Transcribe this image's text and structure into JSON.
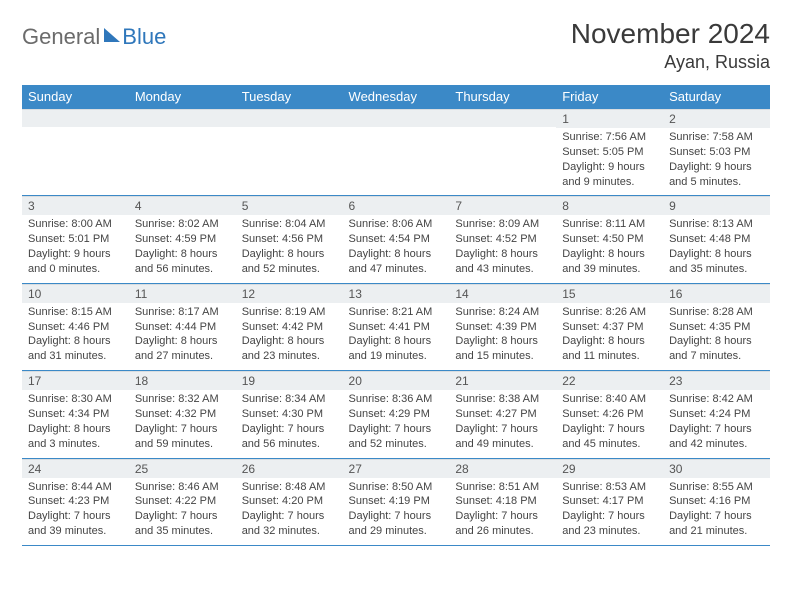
{
  "brand": {
    "word1": "General",
    "word2": "Blue"
  },
  "title": "November 2024",
  "location": "Ayan, Russia",
  "colors": {
    "accent": "#3b89c7",
    "dayrow_bg": "#eceff1"
  },
  "weekdays": [
    "Sunday",
    "Monday",
    "Tuesday",
    "Wednesday",
    "Thursday",
    "Friday",
    "Saturday"
  ],
  "weeks": [
    [
      {
        "n": "",
        "lines": [
          "",
          "",
          ""
        ]
      },
      {
        "n": "",
        "lines": [
          "",
          "",
          ""
        ]
      },
      {
        "n": "",
        "lines": [
          "",
          "",
          ""
        ]
      },
      {
        "n": "",
        "lines": [
          "",
          "",
          ""
        ]
      },
      {
        "n": "",
        "lines": [
          "",
          "",
          ""
        ]
      },
      {
        "n": "1",
        "lines": [
          "Sunrise: 7:56 AM",
          "Sunset: 5:05 PM",
          "Daylight: 9 hours and 9 minutes."
        ]
      },
      {
        "n": "2",
        "lines": [
          "Sunrise: 7:58 AM",
          "Sunset: 5:03 PM",
          "Daylight: 9 hours and 5 minutes."
        ]
      }
    ],
    [
      {
        "n": "3",
        "lines": [
          "Sunrise: 8:00 AM",
          "Sunset: 5:01 PM",
          "Daylight: 9 hours and 0 minutes."
        ]
      },
      {
        "n": "4",
        "lines": [
          "Sunrise: 8:02 AM",
          "Sunset: 4:59 PM",
          "Daylight: 8 hours and 56 minutes."
        ]
      },
      {
        "n": "5",
        "lines": [
          "Sunrise: 8:04 AM",
          "Sunset: 4:56 PM",
          "Daylight: 8 hours and 52 minutes."
        ]
      },
      {
        "n": "6",
        "lines": [
          "Sunrise: 8:06 AM",
          "Sunset: 4:54 PM",
          "Daylight: 8 hours and 47 minutes."
        ]
      },
      {
        "n": "7",
        "lines": [
          "Sunrise: 8:09 AM",
          "Sunset: 4:52 PM",
          "Daylight: 8 hours and 43 minutes."
        ]
      },
      {
        "n": "8",
        "lines": [
          "Sunrise: 8:11 AM",
          "Sunset: 4:50 PM",
          "Daylight: 8 hours and 39 minutes."
        ]
      },
      {
        "n": "9",
        "lines": [
          "Sunrise: 8:13 AM",
          "Sunset: 4:48 PM",
          "Daylight: 8 hours and 35 minutes."
        ]
      }
    ],
    [
      {
        "n": "10",
        "lines": [
          "Sunrise: 8:15 AM",
          "Sunset: 4:46 PM",
          "Daylight: 8 hours and 31 minutes."
        ]
      },
      {
        "n": "11",
        "lines": [
          "Sunrise: 8:17 AM",
          "Sunset: 4:44 PM",
          "Daylight: 8 hours and 27 minutes."
        ]
      },
      {
        "n": "12",
        "lines": [
          "Sunrise: 8:19 AM",
          "Sunset: 4:42 PM",
          "Daylight: 8 hours and 23 minutes."
        ]
      },
      {
        "n": "13",
        "lines": [
          "Sunrise: 8:21 AM",
          "Sunset: 4:41 PM",
          "Daylight: 8 hours and 19 minutes."
        ]
      },
      {
        "n": "14",
        "lines": [
          "Sunrise: 8:24 AM",
          "Sunset: 4:39 PM",
          "Daylight: 8 hours and 15 minutes."
        ]
      },
      {
        "n": "15",
        "lines": [
          "Sunrise: 8:26 AM",
          "Sunset: 4:37 PM",
          "Daylight: 8 hours and 11 minutes."
        ]
      },
      {
        "n": "16",
        "lines": [
          "Sunrise: 8:28 AM",
          "Sunset: 4:35 PM",
          "Daylight: 8 hours and 7 minutes."
        ]
      }
    ],
    [
      {
        "n": "17",
        "lines": [
          "Sunrise: 8:30 AM",
          "Sunset: 4:34 PM",
          "Daylight: 8 hours and 3 minutes."
        ]
      },
      {
        "n": "18",
        "lines": [
          "Sunrise: 8:32 AM",
          "Sunset: 4:32 PM",
          "Daylight: 7 hours and 59 minutes."
        ]
      },
      {
        "n": "19",
        "lines": [
          "Sunrise: 8:34 AM",
          "Sunset: 4:30 PM",
          "Daylight: 7 hours and 56 minutes."
        ]
      },
      {
        "n": "20",
        "lines": [
          "Sunrise: 8:36 AM",
          "Sunset: 4:29 PM",
          "Daylight: 7 hours and 52 minutes."
        ]
      },
      {
        "n": "21",
        "lines": [
          "Sunrise: 8:38 AM",
          "Sunset: 4:27 PM",
          "Daylight: 7 hours and 49 minutes."
        ]
      },
      {
        "n": "22",
        "lines": [
          "Sunrise: 8:40 AM",
          "Sunset: 4:26 PM",
          "Daylight: 7 hours and 45 minutes."
        ]
      },
      {
        "n": "23",
        "lines": [
          "Sunrise: 8:42 AM",
          "Sunset: 4:24 PM",
          "Daylight: 7 hours and 42 minutes."
        ]
      }
    ],
    [
      {
        "n": "24",
        "lines": [
          "Sunrise: 8:44 AM",
          "Sunset: 4:23 PM",
          "Daylight: 7 hours and 39 minutes."
        ]
      },
      {
        "n": "25",
        "lines": [
          "Sunrise: 8:46 AM",
          "Sunset: 4:22 PM",
          "Daylight: 7 hours and 35 minutes."
        ]
      },
      {
        "n": "26",
        "lines": [
          "Sunrise: 8:48 AM",
          "Sunset: 4:20 PM",
          "Daylight: 7 hours and 32 minutes."
        ]
      },
      {
        "n": "27",
        "lines": [
          "Sunrise: 8:50 AM",
          "Sunset: 4:19 PM",
          "Daylight: 7 hours and 29 minutes."
        ]
      },
      {
        "n": "28",
        "lines": [
          "Sunrise: 8:51 AM",
          "Sunset: 4:18 PM",
          "Daylight: 7 hours and 26 minutes."
        ]
      },
      {
        "n": "29",
        "lines": [
          "Sunrise: 8:53 AM",
          "Sunset: 4:17 PM",
          "Daylight: 7 hours and 23 minutes."
        ]
      },
      {
        "n": "30",
        "lines": [
          "Sunrise: 8:55 AM",
          "Sunset: 4:16 PM",
          "Daylight: 7 hours and 21 minutes."
        ]
      }
    ]
  ]
}
